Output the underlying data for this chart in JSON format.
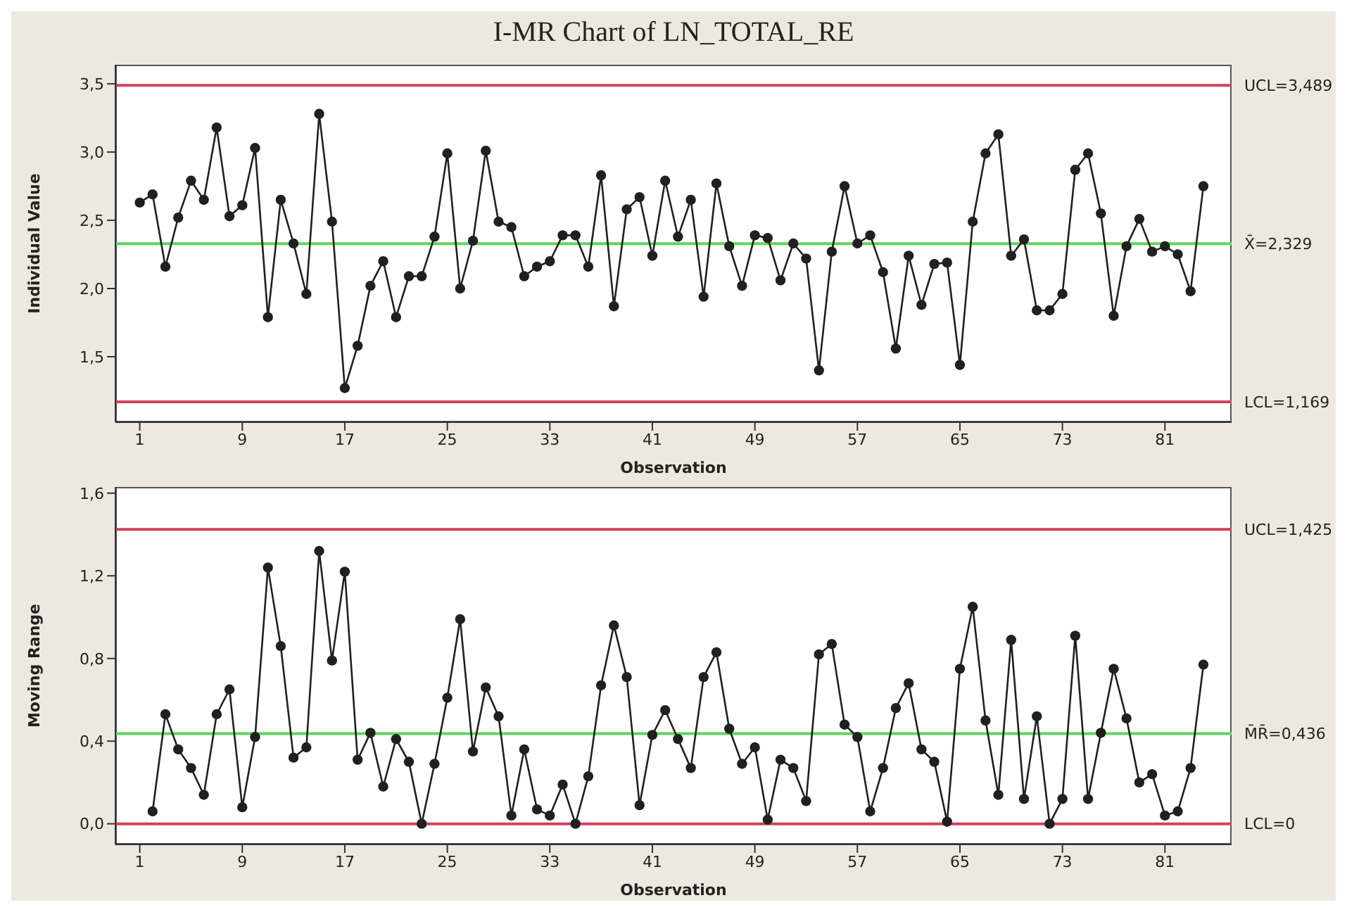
{
  "chart_data": [
    {
      "type": "line",
      "title": "I-MR Chart of LN_TOTAL_RE",
      "xlabel": "Observation",
      "ylabel": "Individual Value",
      "marker": "circle",
      "x": [
        1,
        2,
        3,
        4,
        5,
        6,
        7,
        8,
        9,
        10,
        11,
        12,
        13,
        14,
        15,
        16,
        17,
        18,
        19,
        20,
        21,
        22,
        23,
        24,
        25,
        26,
        27,
        28,
        29,
        30,
        31,
        32,
        33,
        34,
        35,
        36,
        37,
        38,
        39,
        40,
        41,
        42,
        43,
        44,
        45,
        46,
        47,
        48,
        49,
        50,
        51,
        52,
        53,
        54,
        55,
        56,
        57,
        58,
        59,
        60,
        61,
        62,
        63,
        64,
        65,
        66,
        67,
        68,
        69,
        70,
        71,
        72,
        73,
        74,
        75,
        76,
        77,
        78,
        79,
        80,
        81,
        82,
        83,
        84
      ],
      "series": [
        {
          "color": "#202020",
          "values": [
            2.63,
            2.69,
            2.16,
            2.52,
            2.79,
            2.65,
            3.18,
            2.53,
            2.61,
            3.03,
            1.79,
            2.65,
            2.33,
            1.96,
            3.28,
            2.49,
            1.27,
            1.58,
            2.02,
            2.2,
            1.79,
            2.09,
            2.09,
            2.38,
            2.99,
            2.0,
            2.35,
            3.01,
            2.49,
            2.45,
            2.09,
            2.16,
            2.2,
            2.39,
            2.39,
            2.16,
            2.83,
            1.87,
            2.58,
            2.67,
            2.24,
            2.79,
            2.38,
            2.65,
            1.94,
            2.77,
            2.31,
            2.02,
            2.39,
            2.37,
            2.06,
            2.33,
            2.22,
            1.4,
            2.27,
            2.75,
            2.33,
            2.39,
            2.12,
            1.56,
            2.24,
            1.88,
            2.18,
            2.19,
            1.44,
            2.49,
            2.99,
            3.13,
            2.24,
            2.36,
            1.84,
            1.84,
            1.96,
            2.87,
            2.99,
            2.55,
            1.8,
            2.31,
            2.51,
            2.27,
            2.31,
            2.25,
            1.98,
            2.75
          ]
        }
      ],
      "ref_lines": [
        {
          "axis": "y",
          "value": 3.489,
          "label": "UCL=3,489",
          "color": "#d0425e"
        },
        {
          "axis": "y",
          "value": 2.329,
          "label": "X̄=2,329",
          "color": "#5cd65c"
        },
        {
          "axis": "y",
          "value": 1.169,
          "label": "LCL=1,169",
          "color": "#d0425e"
        }
      ],
      "xlim": [
        -0.9,
        86.2
      ],
      "xticks": [
        1,
        9,
        17,
        25,
        33,
        41,
        49,
        57,
        65,
        73,
        81
      ],
      "ylim": [
        1.02,
        3.64
      ],
      "yticks": [
        {
          "value": 1.5,
          "label": "1,5"
        },
        {
          "value": 2.0,
          "label": "2,0"
        },
        {
          "value": 2.5,
          "label": "2,5"
        },
        {
          "value": 3.0,
          "label": "3,0"
        },
        {
          "value": 3.5,
          "label": "3,5"
        }
      ]
    },
    {
      "type": "line",
      "xlabel": "Observation",
      "ylabel": "Moving Range",
      "marker": "circle",
      "series": [
        {
          "color": "#202020",
          "x": [
            2,
            3,
            4,
            5,
            6,
            7,
            8,
            9,
            10,
            11,
            12,
            13,
            14,
            15,
            16,
            17,
            18,
            19,
            20,
            21,
            22,
            23,
            24,
            25,
            26,
            27,
            28,
            29,
            30,
            31,
            32,
            33,
            34,
            35,
            36,
            37,
            38,
            39,
            40,
            41,
            42,
            43,
            44,
            45,
            46,
            47,
            48,
            49,
            50,
            51,
            52,
            53,
            54,
            55,
            56,
            57,
            58,
            59,
            60,
            61,
            62,
            63,
            64,
            65,
            66,
            67,
            68,
            69,
            70,
            71,
            72,
            73,
            74,
            75,
            76,
            77,
            78,
            79,
            80,
            81,
            82,
            83,
            84
          ],
          "values": [
            0.06,
            0.53,
            0.36,
            0.27,
            0.14,
            0.53,
            0.65,
            0.08,
            0.42,
            1.24,
            0.86,
            0.32,
            0.37,
            1.32,
            0.79,
            1.22,
            0.31,
            0.44,
            0.18,
            0.41,
            0.3,
            0,
            0.29,
            0.61,
            0.99,
            0.35,
            0.66,
            0.52,
            0.04,
            0.36,
            0.07,
            0.04,
            0.19,
            0,
            0.23,
            0.67,
            0.96,
            0.71,
            0.09,
            0.43,
            0.55,
            0.41,
            0.27,
            0.71,
            0.83,
            0.46,
            0.29,
            0.37,
            0.02,
            0.31,
            0.27,
            0.11,
            0.82,
            0.87,
            0.48,
            0.42,
            0.06,
            0.27,
            0.56,
            0.68,
            0.36,
            0.3,
            0.01,
            0.75,
            1.05,
            0.5,
            0.14,
            0.89,
            0.12,
            0.52,
            0,
            0.12,
            0.91,
            0.12,
            0.44,
            0.75,
            0.51,
            0.2,
            0.24,
            0.04,
            0.06,
            0.27,
            0.77
          ]
        }
      ],
      "ref_lines": [
        {
          "axis": "y",
          "value": 1.425,
          "label": "UCL=1,425",
          "color": "#d0425e"
        },
        {
          "axis": "y",
          "value": 0.436,
          "label": "M̄R̄=0,436",
          "color": "#5cd65c"
        },
        {
          "axis": "y",
          "value": 0,
          "label": "LCL=0",
          "color": "#d0425e"
        }
      ],
      "xlim": [
        -0.9,
        86.2
      ],
      "xticks": [
        1,
        9,
        17,
        25,
        33,
        41,
        49,
        57,
        65,
        73,
        81
      ],
      "ylim": [
        -0.1,
        1.63
      ],
      "yticks": [
        {
          "value": 0,
          "label": "0,0"
        },
        {
          "value": 0.4,
          "label": "0,4"
        },
        {
          "value": 0.8,
          "label": "0,8"
        },
        {
          "value": 1.2,
          "label": "1,2"
        },
        {
          "value": 1.6,
          "label": "1,6"
        }
      ]
    }
  ]
}
